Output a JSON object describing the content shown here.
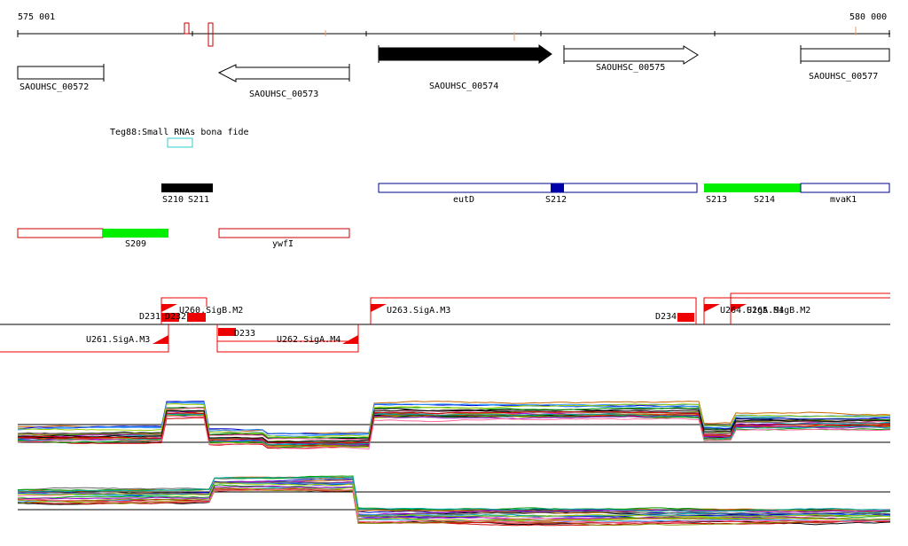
{
  "ruler": {
    "start_label": "575 001",
    "end_label": "580 000"
  },
  "genes": [
    {
      "label": "SAOUHSC_00572",
      "strand": "none",
      "filled": false
    },
    {
      "label": "SAOUHSC_00573",
      "strand": "minus",
      "filled": false
    },
    {
      "label": "SAOUHSC_00574",
      "strand": "plus",
      "filled": true
    },
    {
      "label": "SAOUHSC_00575",
      "strand": "plus",
      "filled": false
    },
    {
      "label": "SAOUHSC_00577",
      "strand": "none",
      "filled": false
    }
  ],
  "small_rna": {
    "label": "Teg88:Small RNAs bona fide",
    "color": "#33cccc"
  },
  "segments_row1": {
    "labels": [
      "S210",
      "S211",
      "eutD",
      "S212",
      "S213",
      "S214",
      "mvaK1"
    ],
    "colors": {
      "black": "#000000",
      "blue": "#0000aa",
      "green": "#00ee00",
      "outline": "#000088"
    }
  },
  "segments_row2": {
    "labels": [
      "S209",
      "ywfI"
    ],
    "colors": {
      "outline": "#cc0000",
      "green": "#00ee00"
    }
  },
  "promoters": {
    "labels": [
      "U260.SigB.M2",
      "D231",
      "D232",
      "D233",
      "U261.SigA.M3",
      "U262.SigA.M4",
      "U263.SigA.M3",
      "D234",
      "U264.SigA.M4",
      "U265.SigB.M2"
    ],
    "color": "#ee0000"
  },
  "tracks": {
    "series_colors": [
      "#000000",
      "#cc0000",
      "#009900",
      "#0000cc",
      "#cc6600",
      "#9900cc",
      "#00aaaa",
      "#888800",
      "#ff6699",
      "#666666",
      "#3399ff",
      "#99cc00"
    ]
  }
}
